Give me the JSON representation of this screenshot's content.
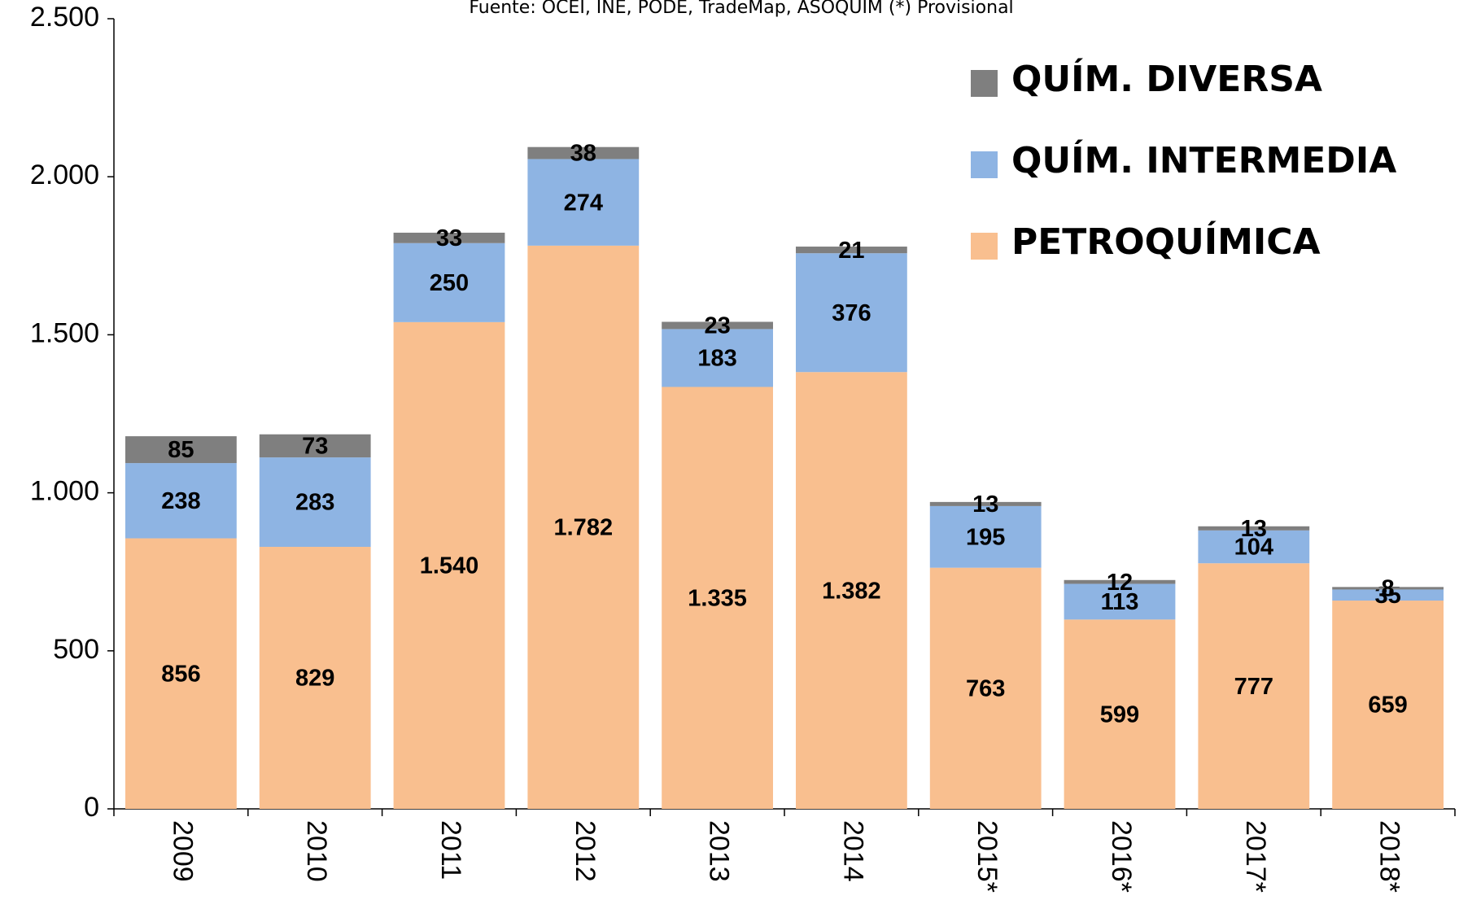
{
  "chart_data": {
    "type": "bar",
    "stacked": true,
    "subtitle": "Fuente: OCEI, INE, PODE, TradeMap, ASOQUIM (*) Provisional",
    "categories": [
      "2009",
      "2010",
      "2011",
      "2012",
      "2013",
      "2014",
      "2015*",
      "2016*",
      "2017*",
      "2018*"
    ],
    "series": [
      {
        "name": "PETROQUÍMICA",
        "color": "#f9bf8f",
        "values": [
          856,
          829,
          1540,
          1782,
          1335,
          1382,
          763,
          599,
          777,
          659
        ],
        "value_labels": [
          "856",
          "829",
          "1.540",
          "1.782",
          "1.335",
          "1.382",
          "763",
          "599",
          "777",
          "659"
        ]
      },
      {
        "name": "QUÍM. INTERMEDIA",
        "color": "#8eb4e3",
        "values": [
          238,
          283,
          250,
          274,
          183,
          376,
          195,
          113,
          104,
          35
        ]
      },
      {
        "name": "QUÍM. DIVERSA",
        "color": "#7f7f7f",
        "values": [
          85,
          73,
          33,
          38,
          23,
          21,
          13,
          12,
          13,
          8
        ]
      }
    ],
    "ylim": [
      0,
      2500
    ],
    "yticks": [
      0,
      500,
      {
        "value": 1000,
        "label": "1.000"
      },
      {
        "value": 1500,
        "label": "1.500"
      },
      {
        "value": 2000,
        "label": "2.000"
      },
      {
        "value": 2500,
        "label": "2.500"
      }
    ],
    "grid": false,
    "legend": "upper right"
  }
}
